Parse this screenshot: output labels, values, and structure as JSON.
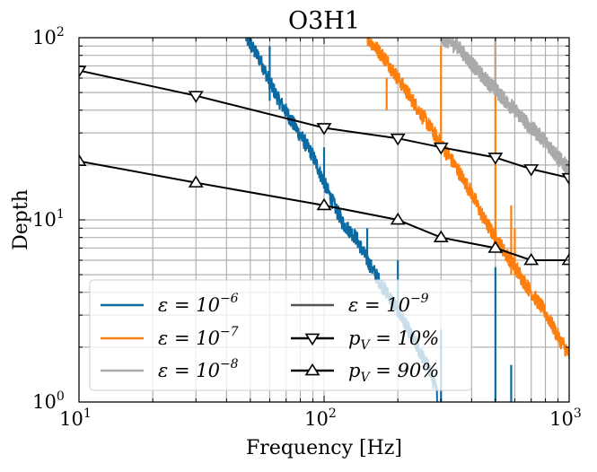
{
  "chart_data": {
    "type": "line",
    "title": "O3H1",
    "xlabel": "Frequency [Hz]",
    "ylabel": "Depth",
    "xscale": "log",
    "yscale": "log",
    "xlim": [
      10,
      1000
    ],
    "ylim": [
      1,
      100
    ],
    "grid": true,
    "x_ticks": [
      {
        "value": 10,
        "base": "10",
        "exp": "1"
      },
      {
        "value": 100,
        "base": "10",
        "exp": "2"
      },
      {
        "value": 1000,
        "base": "10",
        "exp": "3"
      }
    ],
    "y_ticks": [
      {
        "value": 1,
        "base": "10",
        "exp": "0"
      },
      {
        "value": 10,
        "base": "10",
        "exp": "1"
      },
      {
        "value": 100,
        "base": "10",
        "exp": "2"
      }
    ],
    "legend_location": "lower-left",
    "series": [
      {
        "name": "ε = 10⁻⁶",
        "legend_main": "ε = 10",
        "legend_exp": "−6",
        "color": "#0a6aa1",
        "style": "noisy-curve",
        "points": [
          [
            48,
            100
          ],
          [
            55,
            75
          ],
          [
            60,
            57
          ],
          [
            65,
            46
          ],
          [
            72,
            37
          ],
          [
            80,
            29
          ],
          [
            90,
            22.5
          ],
          [
            100,
            16
          ],
          [
            110,
            12
          ],
          [
            120,
            9.5
          ],
          [
            135,
            8
          ],
          [
            150,
            6
          ],
          [
            170,
            4.5
          ],
          [
            200,
            3.2
          ],
          [
            240,
            2
          ],
          [
            270,
            1.5
          ],
          [
            290,
            1.1
          ]
        ],
        "spikes": [
          [
            60,
            45,
            90
          ],
          [
            100,
            16,
            25
          ],
          [
            150,
            6,
            9
          ],
          [
            200,
            3.5,
            6
          ],
          [
            300,
            0.1,
            2.5
          ],
          [
            500,
            0.1,
            5.5
          ],
          [
            580,
            0.1,
            1.6
          ]
        ]
      },
      {
        "name": "ε = 10⁻⁷",
        "legend_main": "ε = 10",
        "legend_exp": "−7",
        "color": "#ff7f0e",
        "style": "noisy-curve",
        "points": [
          [
            150,
            100
          ],
          [
            180,
            75
          ],
          [
            200,
            60
          ],
          [
            230,
            45
          ],
          [
            260,
            35
          ],
          [
            300,
            26
          ],
          [
            350,
            19
          ],
          [
            400,
            14
          ],
          [
            450,
            10
          ],
          [
            500,
            8
          ],
          [
            600,
            5.5
          ],
          [
            700,
            4
          ],
          [
            800,
            3.1
          ],
          [
            900,
            2.3
          ],
          [
            1000,
            1.8
          ]
        ],
        "spikes": [
          [
            180,
            40,
            60
          ],
          [
            300,
            26,
            90
          ],
          [
            500,
            8,
            95
          ],
          [
            580,
            5,
            12
          ],
          [
            600,
            5,
            9
          ]
        ]
      },
      {
        "name": "ε = 10⁻⁸",
        "legend_main": "ε = 10",
        "legend_exp": "−8",
        "color": "#aaaaaa",
        "style": "noisy-curve",
        "points": [
          [
            300,
            100
          ],
          [
            350,
            90
          ],
          [
            400,
            72
          ],
          [
            450,
            60
          ],
          [
            500,
            52
          ],
          [
            550,
            45
          ],
          [
            600,
            40
          ],
          [
            700,
            32
          ],
          [
            800,
            27
          ],
          [
            900,
            22
          ],
          [
            1000,
            19
          ]
        ],
        "spikes": [
          [
            500,
            50,
            100
          ]
        ]
      },
      {
        "name": "ε = 10⁻⁹",
        "legend_main": "ε = 10",
        "legend_exp": "−9",
        "color": "#555555",
        "style": "noisy-curve",
        "points": [],
        "spikes": []
      },
      {
        "name": "pV = 10%",
        "legend_main": "p",
        "legend_sub": "V",
        "legend_rest": " = 10%",
        "color": "#000000",
        "style": "line-marker",
        "marker": "triangle-down",
        "x": [
          10,
          30,
          100,
          200,
          300,
          500,
          700,
          1000
        ],
        "y": [
          66,
          48,
          32,
          28,
          25,
          22,
          19,
          17
        ]
      },
      {
        "name": "pV = 90%",
        "legend_main": "p",
        "legend_sub": "V",
        "legend_rest": " = 90%",
        "color": "#000000",
        "style": "line-marker",
        "marker": "triangle-up",
        "x": [
          10,
          30,
          100,
          200,
          300,
          500,
          700,
          1000
        ],
        "y": [
          21,
          16,
          12,
          10,
          8,
          7,
          6,
          6
        ]
      }
    ]
  }
}
